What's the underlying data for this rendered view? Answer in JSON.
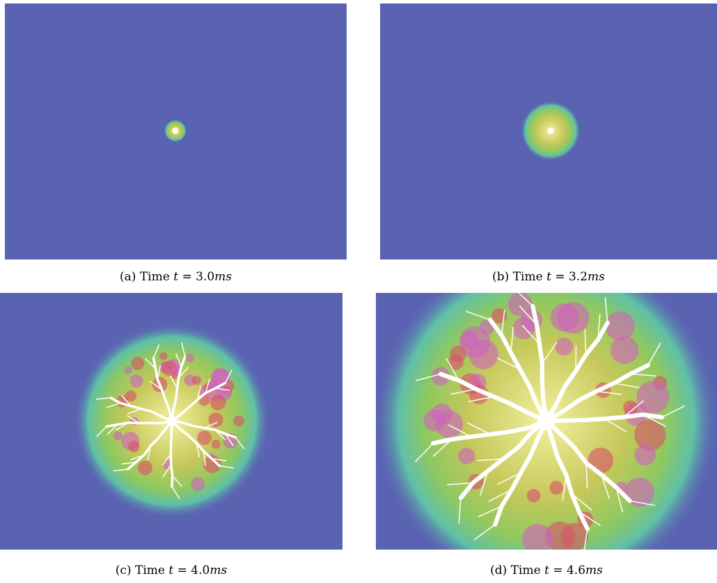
{
  "figure": {
    "panels": [
      {
        "label": "(a)",
        "text": "Time",
        "variable": "t",
        "operator": "=",
        "value": "3.0",
        "unit": "ms"
      },
      {
        "label": "(b)",
        "text": "Time",
        "variable": "t",
        "operator": "=",
        "value": "3.2",
        "unit": "ms"
      },
      {
        "label": "(c)",
        "text": "Time",
        "variable": "t",
        "operator": "=",
        "value": "4.0",
        "unit": "ms"
      },
      {
        "label": "(d)",
        "text": "Time",
        "variable": "t",
        "operator": "=",
        "value": "4.6",
        "unit": "ms"
      }
    ]
  }
}
